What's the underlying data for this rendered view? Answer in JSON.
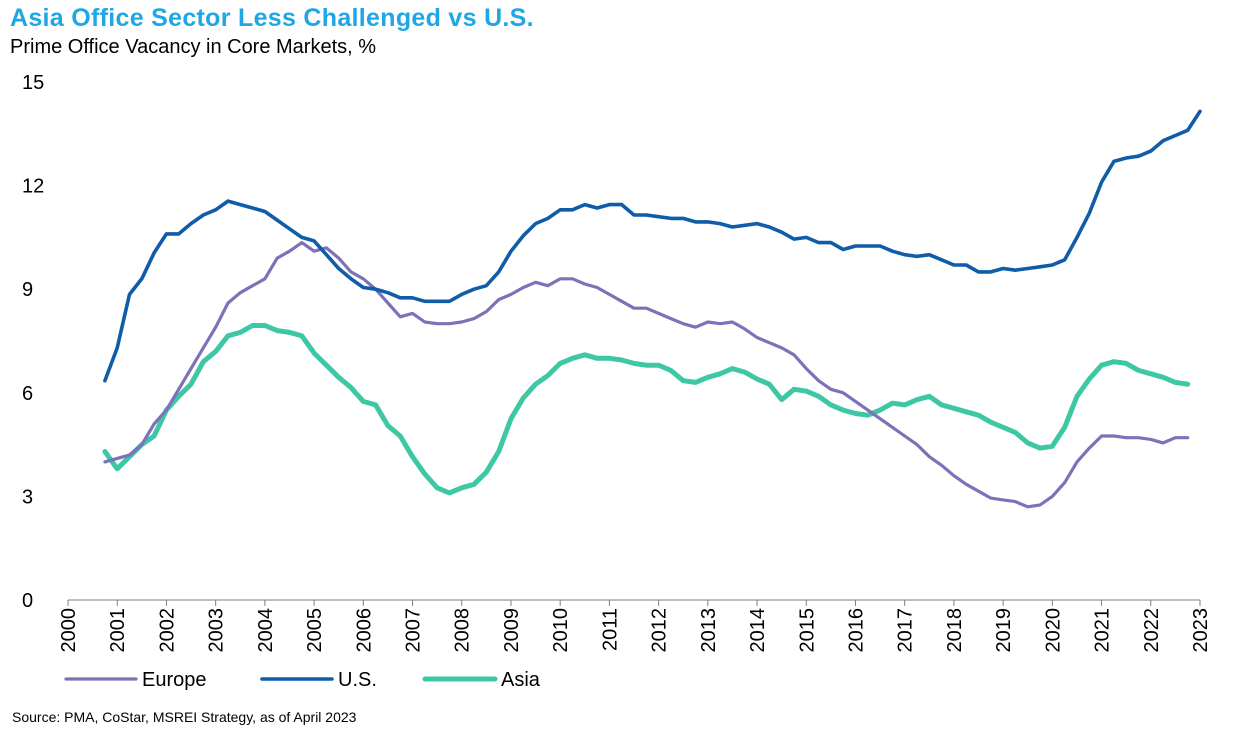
{
  "title": "Asia Office Sector Less Challenged vs U.S.",
  "subtitle": "Prime Office Vacancy in Core Markets, %",
  "source": "Source: PMA, CoStar, MSREI Strategy, as of April 2023",
  "colors": {
    "title": "#1ea7e4",
    "europe": "#7b72b8",
    "us": "#0f5ca8",
    "asia": "#3ec7a4"
  },
  "chart_data": {
    "type": "line",
    "title": "Asia Office Sector Less Challenged vs U.S.",
    "subtitle": "Prime Office Vacancy in Core Markets, %",
    "xlabel": "",
    "ylabel": "",
    "xlim": [
      2000,
      2023
    ],
    "ylim": [
      0,
      15
    ],
    "yticks": [
      0,
      3,
      6,
      9,
      12,
      15
    ],
    "xticks": [
      "2000",
      "2001",
      "2002",
      "2003",
      "2004",
      "2005",
      "2006",
      "2007",
      "2008",
      "2009",
      "2010",
      "2011",
      "2012",
      "2013",
      "2014",
      "2015",
      "2016",
      "2017",
      "2018",
      "2019",
      "2020",
      "2021",
      "2022",
      "2023"
    ],
    "grid": false,
    "legend": "bottom-left",
    "series": [
      {
        "name": "Europe",
        "color": "#7b72b8",
        "x": [
          2000.75,
          2001.0,
          2001.25,
          2001.5,
          2001.75,
          2002.0,
          2002.25,
          2002.5,
          2002.75,
          2003.0,
          2003.25,
          2003.5,
          2003.75,
          2004.0,
          2004.25,
          2004.5,
          2004.75,
          2005.0,
          2005.25,
          2005.5,
          2005.75,
          2006.0,
          2006.25,
          2006.5,
          2006.75,
          2007.0,
          2007.25,
          2007.5,
          2007.75,
          2008.0,
          2008.25,
          2008.5,
          2008.75,
          2009.0,
          2009.25,
          2009.5,
          2009.75,
          2010.0,
          2010.25,
          2010.5,
          2010.75,
          2011.0,
          2011.25,
          2011.5,
          2011.75,
          2012.0,
          2012.25,
          2012.5,
          2012.75,
          2013.0,
          2013.25,
          2013.5,
          2013.75,
          2014.0,
          2014.25,
          2014.5,
          2014.75,
          2015.0,
          2015.25,
          2015.5,
          2015.75,
          2016.0,
          2016.25,
          2016.5,
          2016.75,
          2017.0,
          2017.25,
          2017.5,
          2017.75,
          2018.0,
          2018.25,
          2018.5,
          2018.75,
          2019.0,
          2019.25,
          2019.5,
          2019.75,
          2020.0,
          2020.25,
          2020.5,
          2020.75,
          2021.0,
          2021.25,
          2021.5,
          2021.75,
          2022.0,
          2022.25,
          2022.5,
          2022.75
        ],
        "values": [
          4.0,
          4.1,
          4.2,
          4.5,
          5.1,
          5.5,
          6.1,
          6.7,
          7.3,
          7.9,
          8.6,
          8.9,
          9.1,
          9.3,
          9.9,
          10.1,
          10.35,
          10.1,
          10.2,
          9.9,
          9.5,
          9.3,
          9.0,
          8.6,
          8.2,
          8.3,
          8.05,
          8.0,
          8.0,
          8.05,
          8.15,
          8.35,
          8.7,
          8.85,
          9.05,
          9.2,
          9.1,
          9.3,
          9.3,
          9.15,
          9.05,
          8.85,
          8.65,
          8.45,
          8.45,
          8.3,
          8.15,
          8.0,
          7.9,
          8.05,
          8.0,
          8.05,
          7.85,
          7.6,
          7.45,
          7.3,
          7.1,
          6.7,
          6.35,
          6.1,
          6.0,
          5.75,
          5.5,
          5.25,
          5.0,
          4.75,
          4.5,
          4.15,
          3.9,
          3.6,
          3.35,
          3.15,
          2.95,
          2.9,
          2.85,
          2.7,
          2.75,
          3.0,
          3.4,
          4.0,
          4.4,
          4.75,
          4.75,
          4.7,
          4.7,
          4.65,
          4.55,
          4.7,
          4.7
        ]
      },
      {
        "name": "U.S.",
        "color": "#0f5ca8",
        "x": [
          2000.75,
          2001.0,
          2001.25,
          2001.5,
          2001.75,
          2002.0,
          2002.25,
          2002.5,
          2002.75,
          2003.0,
          2003.25,
          2003.5,
          2003.75,
          2004.0,
          2004.25,
          2004.5,
          2004.75,
          2005.0,
          2005.25,
          2005.5,
          2005.75,
          2006.0,
          2006.25,
          2006.5,
          2006.75,
          2007.0,
          2007.25,
          2007.5,
          2007.75,
          2008.0,
          2008.25,
          2008.5,
          2008.75,
          2009.0,
          2009.25,
          2009.5,
          2009.75,
          2010.0,
          2010.25,
          2010.5,
          2010.75,
          2011.0,
          2011.25,
          2011.5,
          2011.75,
          2012.0,
          2012.25,
          2012.5,
          2012.75,
          2013.0,
          2013.25,
          2013.5,
          2013.75,
          2014.0,
          2014.25,
          2014.5,
          2014.75,
          2015.0,
          2015.25,
          2015.5,
          2015.75,
          2016.0,
          2016.25,
          2016.5,
          2016.75,
          2017.0,
          2017.25,
          2017.5,
          2017.75,
          2018.0,
          2018.25,
          2018.5,
          2018.75,
          2019.0,
          2019.25,
          2019.5,
          2019.75,
          2020.0,
          2020.25,
          2020.5,
          2020.75,
          2021.0,
          2021.25,
          2021.5,
          2021.75,
          2022.0,
          2022.25,
          2022.5,
          2022.75,
          2023.0
        ],
        "values": [
          6.35,
          7.3,
          8.85,
          9.3,
          10.05,
          10.6,
          10.6,
          10.9,
          11.15,
          11.3,
          11.55,
          11.45,
          11.35,
          11.25,
          11.0,
          10.75,
          10.5,
          10.4,
          10.0,
          9.6,
          9.3,
          9.05,
          9.0,
          8.9,
          8.75,
          8.75,
          8.65,
          8.65,
          8.65,
          8.85,
          9.0,
          9.1,
          9.5,
          10.1,
          10.55,
          10.9,
          11.05,
          11.3,
          11.3,
          11.45,
          11.35,
          11.45,
          11.45,
          11.15,
          11.15,
          11.1,
          11.05,
          11.05,
          10.95,
          10.95,
          10.9,
          10.8,
          10.85,
          10.9,
          10.8,
          10.65,
          10.45,
          10.5,
          10.35,
          10.35,
          10.15,
          10.25,
          10.25,
          10.25,
          10.1,
          10.0,
          9.95,
          10.0,
          9.85,
          9.7,
          9.7,
          9.5,
          9.5,
          9.6,
          9.55,
          9.6,
          9.65,
          9.7,
          9.85,
          10.5,
          11.2,
          12.1,
          12.7,
          12.8,
          12.85,
          13.0,
          13.3,
          13.45,
          13.6,
          14.15
        ]
      },
      {
        "name": "Asia",
        "color": "#3ec7a4",
        "x": [
          2000.75,
          2001.0,
          2001.25,
          2001.5,
          2001.75,
          2002.0,
          2002.25,
          2002.5,
          2002.75,
          2003.0,
          2003.25,
          2003.5,
          2003.75,
          2004.0,
          2004.25,
          2004.5,
          2004.75,
          2005.0,
          2005.25,
          2005.5,
          2005.75,
          2006.0,
          2006.25,
          2006.5,
          2006.75,
          2007.0,
          2007.25,
          2007.5,
          2007.75,
          2008.0,
          2008.25,
          2008.5,
          2008.75,
          2009.0,
          2009.25,
          2009.5,
          2009.75,
          2010.0,
          2010.25,
          2010.5,
          2010.75,
          2011.0,
          2011.25,
          2011.5,
          2011.75,
          2012.0,
          2012.25,
          2012.5,
          2012.75,
          2013.0,
          2013.25,
          2013.5,
          2013.75,
          2014.0,
          2014.25,
          2014.5,
          2014.75,
          2015.0,
          2015.25,
          2015.5,
          2015.75,
          2016.0,
          2016.25,
          2016.5,
          2016.75,
          2017.0,
          2017.25,
          2017.5,
          2017.75,
          2018.0,
          2018.25,
          2018.5,
          2018.75,
          2019.0,
          2019.25,
          2019.5,
          2019.75,
          2020.0,
          2020.25,
          2020.5,
          2020.75,
          2021.0,
          2021.25,
          2021.5,
          2021.75,
          2022.0,
          2022.25,
          2022.5,
          2022.75
        ],
        "values": [
          4.3,
          3.8,
          4.15,
          4.5,
          4.75,
          5.5,
          5.9,
          6.25,
          6.9,
          7.2,
          7.65,
          7.75,
          7.95,
          7.95,
          7.8,
          7.75,
          7.65,
          7.15,
          6.8,
          6.45,
          6.15,
          5.75,
          5.65,
          5.05,
          4.75,
          4.15,
          3.65,
          3.25,
          3.1,
          3.25,
          3.35,
          3.7,
          4.3,
          5.25,
          5.85,
          6.25,
          6.5,
          6.85,
          7.0,
          7.1,
          7.0,
          7.0,
          6.95,
          6.85,
          6.8,
          6.8,
          6.65,
          6.35,
          6.3,
          6.45,
          6.55,
          6.7,
          6.6,
          6.4,
          6.25,
          5.8,
          6.1,
          6.05,
          5.9,
          5.65,
          5.5,
          5.4,
          5.35,
          5.5,
          5.7,
          5.65,
          5.8,
          5.9,
          5.65,
          5.55,
          5.45,
          5.35,
          5.15,
          5.0,
          4.85,
          4.55,
          4.4,
          4.45,
          5.0,
          5.9,
          6.4,
          6.8,
          6.9,
          6.85,
          6.65,
          6.55,
          6.45,
          6.3,
          6.25
        ]
      }
    ]
  }
}
